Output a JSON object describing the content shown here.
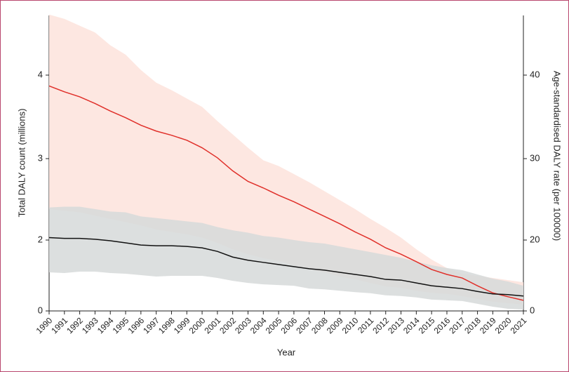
{
  "chart_data": {
    "type": "line",
    "x_label": "Year",
    "y_label": "Total DALY count (millions)",
    "y2_label": "Age-standardised DALY rate (per 100000)",
    "categories": [
      "1990",
      "1991",
      "1992",
      "1993",
      "1994",
      "1995",
      "1996",
      "1997",
      "1998",
      "1999",
      "2000",
      "2001",
      "2002",
      "2003",
      "2004",
      "2005",
      "2006",
      "2007",
      "2008",
      "2009",
      "2010",
      "2011",
      "2012",
      "2013",
      "2014",
      "2015",
      "2016",
      "2017",
      "2018",
      "2019",
      "2020",
      "2021"
    ],
    "ylim": [
      0,
      4.7
    ],
    "yticks": [
      0,
      2,
      3,
      4
    ],
    "y2lim": [
      0,
      47
    ],
    "y2ticks": [
      0,
      20,
      30,
      40
    ],
    "series": [
      {
        "color": "#e0302a",
        "band_color": "#fde3dc",
        "values": [
          3.87,
          3.8,
          3.74,
          3.66,
          3.57,
          3.49,
          3.4,
          3.33,
          3.28,
          3.22,
          3.13,
          3.01,
          2.85,
          2.72,
          2.64,
          2.55,
          2.47,
          2.38,
          2.29,
          2.2,
          2.1,
          2.01,
          1.78,
          1.6,
          1.39,
          1.17,
          1.03,
          0.93,
          0.71,
          0.51,
          0.4,
          0.3
        ],
        "upper": [
          4.71,
          4.66,
          4.58,
          4.5,
          4.35,
          4.24,
          4.06,
          3.91,
          3.82,
          3.72,
          3.62,
          3.45,
          3.29,
          3.13,
          2.98,
          2.91,
          2.81,
          2.71,
          2.6,
          2.49,
          2.38,
          2.26,
          2.15,
          2.03,
          1.74,
          1.45,
          1.21,
          1.05,
          0.99,
          0.93,
          0.87,
          0.81
        ],
        "lower": [
          2.38,
          2.36,
          2.34,
          2.3,
          2.26,
          2.22,
          2.18,
          2.13,
          2.1,
          2.07,
          2.03,
          1.92,
          1.74,
          1.6,
          1.49,
          1.41,
          1.29,
          1.17,
          1.09,
          0.97,
          0.89,
          0.79,
          0.69,
          0.65,
          0.57,
          0.51,
          0.48,
          0.42,
          0.34,
          0.26,
          0.22,
          0.18
        ]
      },
      {
        "color": "#111111",
        "band_color": "#d6d9d9",
        "values": [
          2.03,
          2.02,
          2.02,
          2.01,
          1.98,
          1.92,
          1.86,
          1.84,
          1.84,
          1.82,
          1.78,
          1.68,
          1.52,
          1.43,
          1.37,
          1.31,
          1.25,
          1.19,
          1.15,
          1.09,
          1.03,
          0.97,
          0.89,
          0.87,
          0.79,
          0.71,
          0.67,
          0.63,
          0.55,
          0.48,
          0.46,
          0.42
        ],
        "upper": [
          2.4,
          2.41,
          2.41,
          2.38,
          2.35,
          2.34,
          2.29,
          2.27,
          2.25,
          2.23,
          2.21,
          2.16,
          2.12,
          2.09,
          2.05,
          2.03,
          2.0,
          1.94,
          1.9,
          1.82,
          1.74,
          1.66,
          1.58,
          1.5,
          1.39,
          1.29,
          1.21,
          1.15,
          1.03,
          0.91,
          0.83,
          0.71
        ],
        "lower": [
          1.09,
          1.07,
          1.11,
          1.11,
          1.07,
          1.05,
          1.01,
          0.97,
          0.99,
          0.99,
          0.99,
          0.93,
          0.85,
          0.79,
          0.75,
          0.73,
          0.71,
          0.63,
          0.61,
          0.57,
          0.53,
          0.5,
          0.44,
          0.42,
          0.38,
          0.32,
          0.3,
          0.28,
          0.2,
          0.12,
          0.06,
          0.04
        ]
      }
    ]
  }
}
